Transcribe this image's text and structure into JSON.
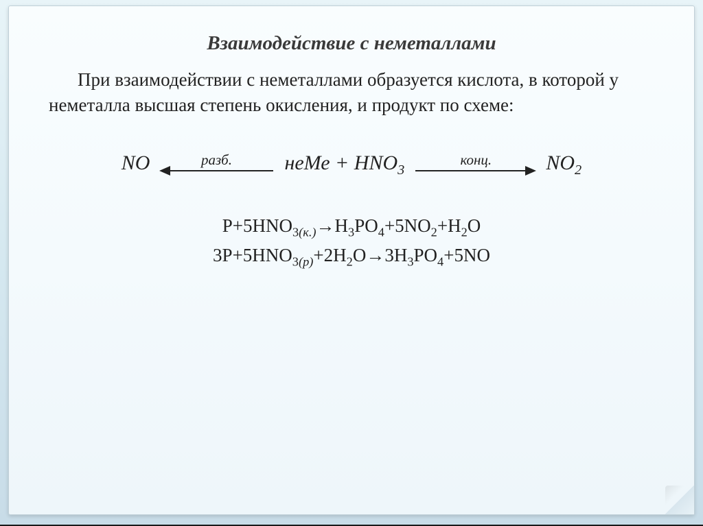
{
  "slide": {
    "background_gradient": [
      "#e8f4f8",
      "#c8dce8"
    ],
    "card_gradient": [
      "#f9fdfe",
      "#eef6fa"
    ],
    "title": "Взаимодействие с неметаллами",
    "title_color": "#3a3a3a",
    "title_fontsize": 29,
    "intro": "При взаимодействии с неметаллами образуется кислота, в которой у неметалла высшая степень окисления, и продукт по схеме:",
    "intro_fontsize": 27,
    "scheme": {
      "left_product": "NO",
      "left_arrow_label": "разб.",
      "center": "неМе + HNO₃",
      "right_arrow_label": "конц.",
      "right_product": "NO₂",
      "arrow_color": "#222222",
      "fontsize": 30
    },
    "equations": [
      "P+5HNO₃₍к.₎→H₃PO₄+5NO₂+H₂O",
      "3P+5HNO₃₍р₎+2H₂O→3H₃PO₄+5NO"
    ],
    "equation_fontsize": 27,
    "text_color": "#222222"
  },
  "viewer": {
    "bottom_bar_color": "#1a1a1a"
  }
}
